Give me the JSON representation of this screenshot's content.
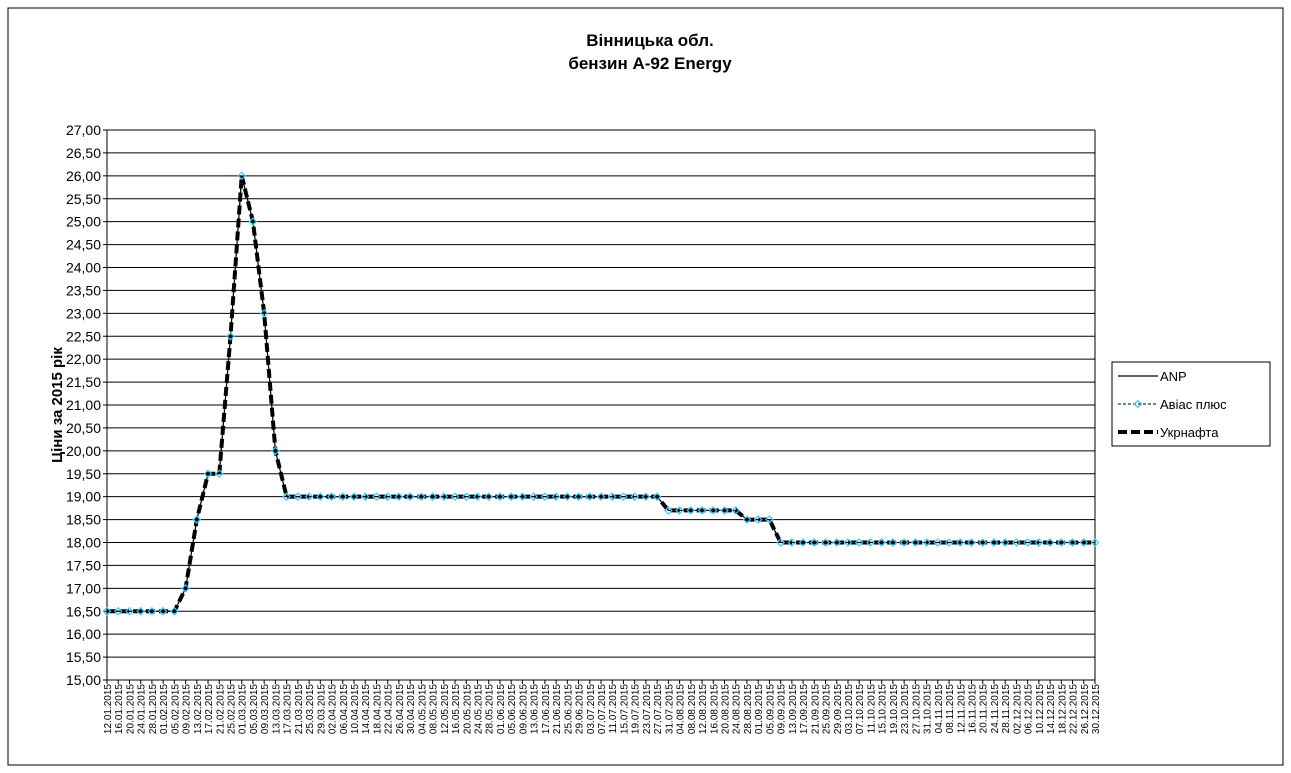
{
  "chart_data": {
    "type": "line",
    "title": "Вінницька обл.",
    "subtitle": "бензин А-92 Energy",
    "y_label": "Ціни за 2015 рік",
    "categories": [
      "12.01.2015",
      "16.01.2015",
      "20.01.2015",
      "24.01.2015",
      "28.01.2015",
      "01.02.2015",
      "05.02.2015",
      "09.02.2015",
      "13.02.2015",
      "17.02.2015",
      "21.02.2015",
      "25.02.2015",
      "01.03.2015",
      "05.03.2015",
      "09.03.2015",
      "13.03.2015",
      "17.03.2015",
      "21.03.2015",
      "25.03.2015",
      "29.03.2015",
      "02.04.2015",
      "06.04.2015",
      "10.04.2015",
      "14.04.2015",
      "18.04.2015",
      "22.04.2015",
      "26.04.2015",
      "30.04.2015",
      "04.05.2015",
      "08.05.2015",
      "12.05.2015",
      "16.05.2015",
      "20.05.2015",
      "24.05.2015",
      "28.05.2015",
      "01.06.2015",
      "05.06.2015",
      "09.06.2015",
      "13.06.2015",
      "17.06.2015",
      "21.06.2015",
      "25.06.2015",
      "29.06.2015",
      "03.07.2015",
      "07.07.2015",
      "11.07.2015",
      "15.07.2015",
      "19.07.2015",
      "23.07.2015",
      "27.07.2015",
      "31.07.2015",
      "04.08.2015",
      "08.08.2015",
      "12.08.2015",
      "16.08.2015",
      "20.08.2015",
      "24.08.2015",
      "28.08.2015",
      "01.09.2015",
      "05.09.2015",
      "09.09.2015",
      "13.09.2015",
      "17.09.2015",
      "21.09.2015",
      "25.09.2015",
      "29.09.2015",
      "03.10.2015",
      "07.10.2015",
      "11.10.2015",
      "15.10.2015",
      "19.10.2015",
      "23.10.2015",
      "27.10.2015",
      "31.10.2015",
      "04.11.2015",
      "08.11.2015",
      "12.11.2015",
      "16.11.2015",
      "20.11.2015",
      "24.11.2015",
      "28.11.2015",
      "02.12.2015",
      "06.12.2015",
      "10.12.2015",
      "14.12.2015",
      "18.12.2015",
      "22.12.2015",
      "26.12.2015",
      "30.12.2015"
    ],
    "series": [
      {
        "name": "ANP",
        "color": "#000000",
        "line_style": "solid",
        "values": [
          16.5,
          16.5,
          16.5,
          16.5,
          16.5,
          16.5,
          16.5,
          17,
          18.5,
          19.5,
          19.5,
          22.5,
          26,
          25,
          23,
          20,
          19,
          19,
          19,
          19,
          19,
          19,
          19,
          19,
          19,
          19,
          19,
          19,
          19,
          19,
          19,
          19,
          19,
          19,
          19,
          19,
          19,
          19,
          19,
          19,
          19,
          19,
          19,
          19,
          19,
          19,
          19,
          19,
          19,
          19,
          18.7,
          18.7,
          18.7,
          18.7,
          18.7,
          18.7,
          18.7,
          18.5,
          18.5,
          18.5,
          18,
          18,
          18,
          18,
          18,
          18,
          18,
          18,
          18,
          18,
          18,
          18,
          18,
          18,
          18,
          18,
          18,
          18,
          18,
          18,
          18,
          18,
          18,
          18,
          18,
          18,
          18,
          18,
          18
        ]
      },
      {
        "name": "Авіас плюс",
        "color": "#000000",
        "line_style": "dashed",
        "marker_color": "#33ccff",
        "values": [
          16.5,
          16.5,
          16.5,
          16.5,
          16.5,
          16.5,
          16.5,
          17,
          18.5,
          19.5,
          19.5,
          22.5,
          26,
          25,
          23,
          20,
          19,
          19,
          19,
          19,
          19,
          19,
          19,
          19,
          19,
          19,
          19,
          19,
          19,
          19,
          19,
          19,
          19,
          19,
          19,
          19,
          19,
          19,
          19,
          19,
          19,
          19,
          19,
          19,
          19,
          19,
          19,
          19,
          19,
          19,
          18.7,
          18.7,
          18.7,
          18.7,
          18.7,
          18.7,
          18.7,
          18.5,
          18.5,
          18.5,
          18,
          18,
          18,
          18,
          18,
          18,
          18,
          18,
          18,
          18,
          18,
          18,
          18,
          18,
          18,
          18,
          18,
          18,
          18,
          18,
          18,
          18,
          18,
          18,
          18,
          18,
          18,
          18,
          18
        ]
      },
      {
        "name": "Укрнафта",
        "color": "#000000",
        "line_style": "bold-dashed",
        "values": [
          16.5,
          16.5,
          16.5,
          16.5,
          16.5,
          16.5,
          16.5,
          17,
          18.5,
          19.5,
          19.5,
          22.5,
          26,
          25,
          23,
          20,
          19,
          19,
          19,
          19,
          19,
          19,
          19,
          19,
          19,
          19,
          19,
          19,
          19,
          19,
          19,
          19,
          19,
          19,
          19,
          19,
          19,
          19,
          19,
          19,
          19,
          19,
          19,
          19,
          19,
          19,
          19,
          19,
          19,
          19,
          18.7,
          18.7,
          18.7,
          18.7,
          18.7,
          18.7,
          18.7,
          18.5,
          18.5,
          18.5,
          18,
          18,
          18,
          18,
          18,
          18,
          18,
          18,
          18,
          18,
          18,
          18,
          18,
          18,
          18,
          18,
          18,
          18,
          18,
          18,
          18,
          18,
          18,
          18,
          18,
          18,
          18,
          18,
          18
        ]
      }
    ],
    "ylim": [
      15,
      27
    ],
    "yticks": [
      {
        "value": 15,
        "label": "15,00"
      },
      {
        "value": 15.5,
        "label": "15,50"
      },
      {
        "value": 16,
        "label": "16,00"
      },
      {
        "value": 16.5,
        "label": "16,50"
      },
      {
        "value": 17,
        "label": "17,00"
      },
      {
        "value": 17.5,
        "label": "17,50"
      },
      {
        "value": 18,
        "label": "18,00"
      },
      {
        "value": 18.5,
        "label": "18,50"
      },
      {
        "value": 19,
        "label": "19,00"
      },
      {
        "value": 19.5,
        "label": "19,50"
      },
      {
        "value": 20,
        "label": "20,00"
      },
      {
        "value": 20.5,
        "label": "20,50"
      },
      {
        "value": 21,
        "label": "21,00"
      },
      {
        "value": 21.5,
        "label": "21,50"
      },
      {
        "value": 22,
        "label": "22,00"
      },
      {
        "value": 22.5,
        "label": "22,50"
      },
      {
        "value": 23,
        "label": "23,00"
      },
      {
        "value": 23.5,
        "label": "23,50"
      },
      {
        "value": 24,
        "label": "24,00"
      },
      {
        "value": 24.5,
        "label": "24,50"
      },
      {
        "value": 25,
        "label": "25,00"
      },
      {
        "value": 25.5,
        "label": "25,50"
      },
      {
        "value": 26,
        "label": "26,00"
      },
      {
        "value": 26.5,
        "label": "26,50"
      },
      {
        "value": 27,
        "label": "27,00"
      }
    ],
    "grid": true,
    "legend": "right"
  }
}
